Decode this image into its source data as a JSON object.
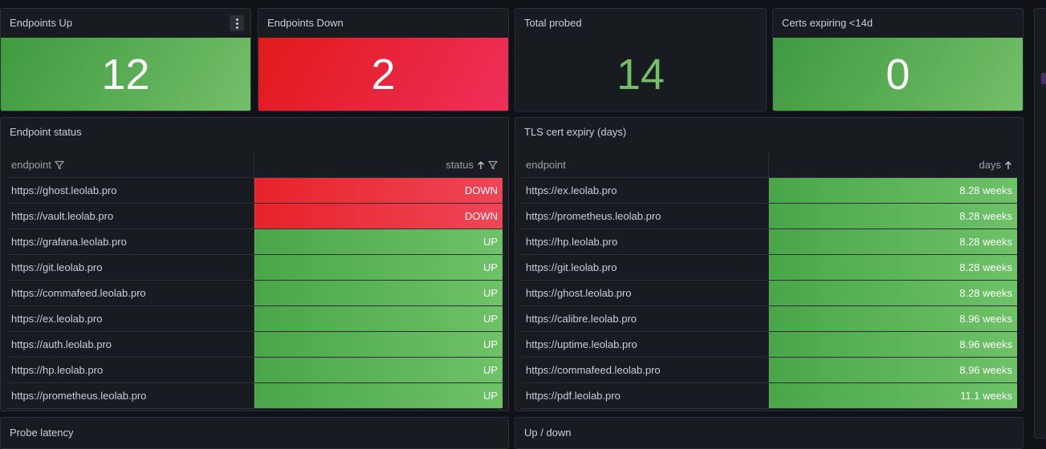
{
  "stats": [
    {
      "title": "Endpoints Up",
      "value": "12",
      "color": "#73bf69"
    },
    {
      "title": "Endpoints Down",
      "value": "2",
      "color": "#e02f44"
    },
    {
      "title": "Total probed",
      "value": "14",
      "color": "#73bf69"
    },
    {
      "title": "Certs expiring <14d",
      "value": "0",
      "color": "#73bf69"
    }
  ],
  "endpoint_status": {
    "title": "Endpoint status",
    "col_endpoint": "endpoint",
    "col_status": "status",
    "rows": [
      {
        "endpoint": "https://ghost.leolab.pro",
        "status": "DOWN"
      },
      {
        "endpoint": "https://vault.leolab.pro",
        "status": "DOWN"
      },
      {
        "endpoint": "https://grafana.leolab.pro",
        "status": "UP"
      },
      {
        "endpoint": "https://git.leolab.pro",
        "status": "UP"
      },
      {
        "endpoint": "https://commafeed.leolab.pro",
        "status": "UP"
      },
      {
        "endpoint": "https://ex.leolab.pro",
        "status": "UP"
      },
      {
        "endpoint": "https://auth.leolab.pro",
        "status": "UP"
      },
      {
        "endpoint": "https://hp.leolab.pro",
        "status": "UP"
      },
      {
        "endpoint": "https://prometheus.leolab.pro",
        "status": "UP"
      }
    ]
  },
  "tls_expiry": {
    "title": "TLS cert expiry (days)",
    "col_endpoint": "endpoint",
    "col_days": "days",
    "rows": [
      {
        "endpoint": "https://ex.leolab.pro",
        "days": "8.28 weeks"
      },
      {
        "endpoint": "https://prometheus.leolab.pro",
        "days": "8.28 weeks"
      },
      {
        "endpoint": "https://hp.leolab.pro",
        "days": "8.28 weeks"
      },
      {
        "endpoint": "https://git.leolab.pro",
        "days": "8.28 weeks"
      },
      {
        "endpoint": "https://ghost.leolab.pro",
        "days": "8.28 weeks"
      },
      {
        "endpoint": "https://calibre.leolab.pro",
        "days": "8.96 weeks"
      },
      {
        "endpoint": "https://uptime.leolab.pro",
        "days": "8.96 weeks"
      },
      {
        "endpoint": "https://commafeed.leolab.pro",
        "days": "8.96 weeks"
      },
      {
        "endpoint": "https://pdf.leolab.pro",
        "days": "11.1 weeks"
      }
    ]
  },
  "bottom_panels": [
    {
      "title": "Probe latency"
    },
    {
      "title": "Up / down"
    }
  ]
}
